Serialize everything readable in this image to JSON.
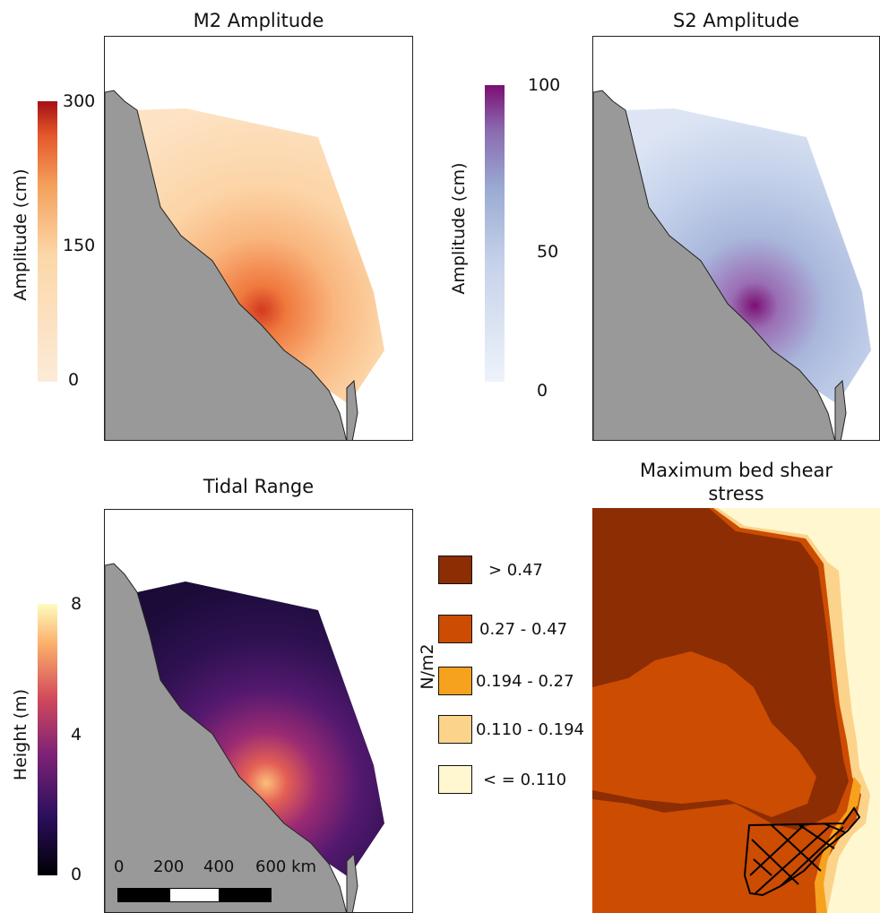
{
  "panels": {
    "m2": {
      "title": "M2 Amplitude",
      "colorbar_label": "Amplitude (cm)",
      "ticks": [
        "300",
        "150",
        "0"
      ],
      "colors": [
        "#fcebd8",
        "#fcd7a8",
        "#f4a05a",
        "#e4572a",
        "#a50f15"
      ]
    },
    "s2": {
      "title": "S2 Amplitude",
      "colorbar_label": "Amplitude (cm)",
      "ticks": [
        "100",
        "50",
        "0"
      ],
      "colors": [
        "#eef3fb",
        "#c6d2ea",
        "#9aabd3",
        "#8a6aaf",
        "#7b0f73"
      ]
    },
    "tidal": {
      "title": "Tidal Range",
      "colorbar_label": "Height (m)",
      "ticks": [
        "8",
        "4",
        "0"
      ],
      "colors": [
        "#000004",
        "#2c0f5e",
        "#7f2376",
        "#d1495b",
        "#fcae6a",
        "#fcfdbf"
      ],
      "scalebar": {
        "labels": [
          "0",
          "200",
          "400",
          "600 km"
        ]
      }
    },
    "shear": {
      "title_line1": "Maximum bed shear",
      "title_line2": "stress",
      "unit_label": "N/m2",
      "legend": [
        {
          "label": "> 0.47",
          "color": "#8c2d04"
        },
        {
          "label": "0.27 - 0.47",
          "color": "#cc4c02"
        },
        {
          "label": "0.194 - 0.27",
          "color": "#f7a21e"
        },
        {
          "label": "0.110 - 0.194",
          "color": "#fbd38a"
        },
        {
          "label": "< = 0.110",
          "color": "#fff7cf"
        }
      ]
    }
  },
  "land_color": "#999999"
}
